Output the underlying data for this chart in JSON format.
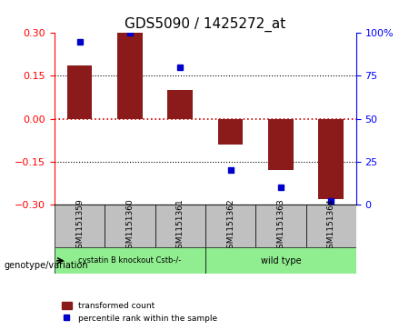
{
  "title": "GDS5090 / 1425272_at",
  "samples": [
    "GSM1151359",
    "GSM1151360",
    "GSM1151361",
    "GSM1151362",
    "GSM1151363",
    "GSM1151364"
  ],
  "bar_values": [
    0.185,
    0.3,
    0.1,
    -0.09,
    -0.18,
    -0.28
  ],
  "percentile_values": [
    95,
    100,
    80,
    20,
    10,
    2
  ],
  "bar_color": "#8B1A1A",
  "dot_color": "#0000CC",
  "ylim_left": [
    -0.3,
    0.3
  ],
  "ylim_right": [
    0,
    100
  ],
  "yticks_left": [
    -0.3,
    -0.15,
    0,
    0.15,
    0.3
  ],
  "yticks_right": [
    0,
    25,
    50,
    75,
    100
  ],
  "ytick_labels_right": [
    "0",
    "25",
    "50",
    "75",
    "100%"
  ],
  "group1_label": "cystatin B knockout Cstb-/-",
  "group2_label": "wild type",
  "group1_indices": [
    0,
    1,
    2
  ],
  "group2_indices": [
    3,
    4,
    5
  ],
  "group1_color": "#90EE90",
  "group2_color": "#90EE90",
  "genotype_label": "genotype/variation",
  "legend_bar_label": "transformed count",
  "legend_dot_label": "percentile rank within the sample",
  "bar_width": 0.5,
  "zero_line_color": "#CC0000",
  "grid_color": "#000000",
  "sample_box_color": "#C0C0C0",
  "title_fontsize": 11,
  "tick_fontsize": 8,
  "label_fontsize": 8
}
